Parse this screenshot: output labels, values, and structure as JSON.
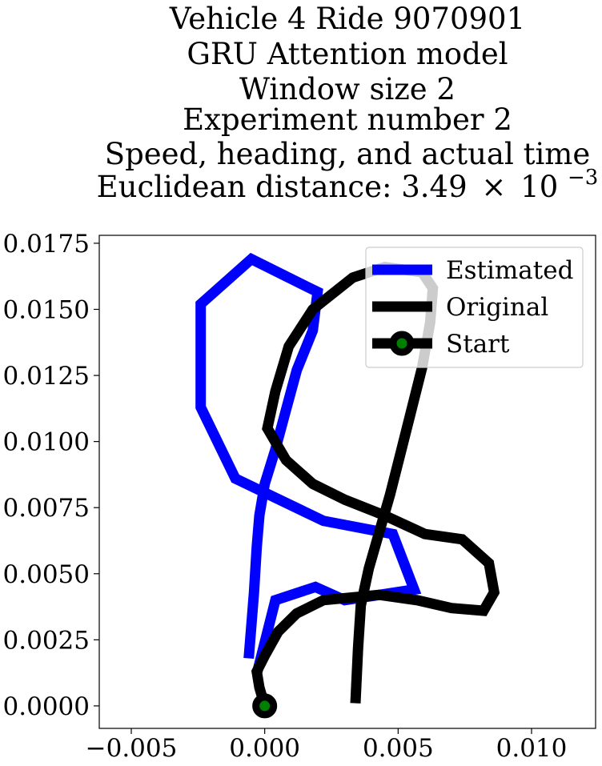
{
  "chart_data": {
    "type": "line",
    "title_lines": [
      "Vehicle 4 Ride 9070901",
      "GRU Attention model",
      "Window size 2",
      "Experiment number 2",
      "Speed, heading, and actual time"
    ],
    "title_distance_prefix": "Euclidean distance: 3.49",
    "title_distance_times": "×",
    "title_distance_base": "10",
    "title_distance_exponent": "−3",
    "xlim": [
      -0.0062,
      0.0124
    ],
    "ylim": [
      -0.00085,
      0.0178
    ],
    "x_ticks": [
      -0.005,
      0.0,
      0.005,
      0.01
    ],
    "x_tick_labels": [
      "−0.005",
      "0.000",
      "0.005",
      "0.010"
    ],
    "y_ticks": [
      0.0,
      0.0025,
      0.005,
      0.0075,
      0.01,
      0.0125,
      0.015,
      0.0175
    ],
    "y_tick_labels": [
      "0.0000",
      "0.0025",
      "0.0050",
      "0.0075",
      "0.0100",
      "0.0125",
      "0.0150",
      "0.0175"
    ],
    "grid": false,
    "legend_position": "top-right",
    "series": [
      {
        "name": "Estimated",
        "color": "#0000ff",
        "x": [
          -0.0006,
          -0.0004,
          -0.0003,
          -0.0002,
          0.0,
          0.0004,
          0.0008,
          0.0012,
          0.0018,
          0.002,
          0.0019,
          -0.0005,
          -0.0024,
          -0.0024,
          -0.0011,
          0.0022,
          0.0048,
          0.0056,
          0.003,
          0.0019,
          0.0004,
          -0.0003
        ],
        "y": [
          0.0018,
          0.0043,
          0.006,
          0.0072,
          0.0084,
          0.0097,
          0.0112,
          0.0127,
          0.0142,
          0.0158,
          0.0157,
          0.0169,
          0.0152,
          0.0113,
          0.0086,
          0.007,
          0.0065,
          0.0044,
          0.004,
          0.0045,
          0.004,
          0.0012
        ]
      },
      {
        "name": "Original",
        "color": "#000000",
        "x": [
          0.0034,
          0.0035,
          0.0036,
          0.0039,
          0.0043,
          0.0047,
          0.0051,
          0.0055,
          0.0059,
          0.0062,
          0.0063,
          0.0059,
          0.0045,
          0.0033,
          0.0018,
          0.0009,
          0.0004,
          0.0001,
          0.0008,
          0.0018,
          0.003,
          0.0045,
          0.006,
          0.0074,
          0.0084,
          0.0086,
          0.0082,
          0.007,
          0.0057,
          0.0043,
          0.0022,
          0.0012,
          0.0005,
          0.0,
          -0.0003,
          -0.0002,
          0.0
        ],
        "y": [
          0.0001,
          0.0022,
          0.0038,
          0.0052,
          0.0066,
          0.008,
          0.0096,
          0.0112,
          0.0128,
          0.0145,
          0.0158,
          0.0164,
          0.0166,
          0.0162,
          0.015,
          0.0136,
          0.0119,
          0.0105,
          0.0093,
          0.0084,
          0.0078,
          0.0072,
          0.0065,
          0.0063,
          0.0054,
          0.0043,
          0.0036,
          0.0037,
          0.004,
          0.0042,
          0.004,
          0.0035,
          0.0028,
          0.0019,
          0.0013,
          0.0007,
          0.0
        ]
      },
      {
        "name": "Start",
        "color": "#000000",
        "marker_face": "#008000",
        "x": [
          0.0
        ],
        "y": [
          0.0
        ]
      }
    ]
  }
}
